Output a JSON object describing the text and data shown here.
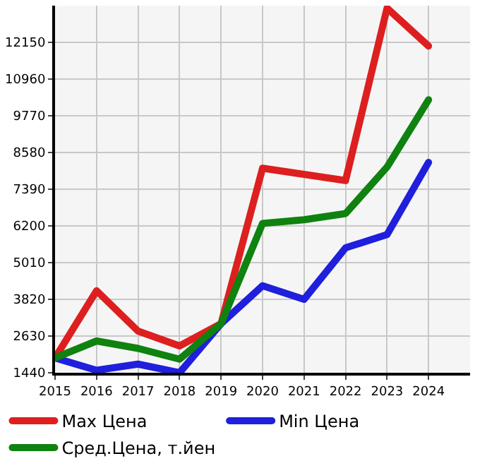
{
  "chart_data": {
    "type": "line",
    "x": [
      2015,
      2016,
      2017,
      2018,
      2019,
      2020,
      2021,
      2022,
      2023,
      2024
    ],
    "series": [
      {
        "name": "Max Цена",
        "color": "#dd1f1f",
        "values": [
          1920,
          4100,
          2790,
          2310,
          3030,
          8070,
          7870,
          7670,
          13260,
          12030
        ]
      },
      {
        "name": "Min Цена",
        "color": "#1f1fdd",
        "values": [
          1920,
          1520,
          1720,
          1440,
          3030,
          4260,
          3820,
          5490,
          5920,
          8260
        ]
      },
      {
        "name": "Сред.Цена, т.йен",
        "color": "#0f820f",
        "values": [
          1920,
          2470,
          2230,
          1880,
          3030,
          6280,
          6400,
          6600,
          8110,
          10290
        ]
      }
    ],
    "xlim": [
      2015,
      2025
    ],
    "xticks": [
      2015,
      2016,
      2017,
      2018,
      2019,
      2020,
      2021,
      2022,
      2023,
      2024
    ],
    "ylim": [
      1440,
      13340
    ],
    "yticks": [
      1440,
      2630,
      3820,
      5010,
      6200,
      7390,
      8580,
      9770,
      10960,
      12150
    ],
    "grid": true,
    "legend": "bottom",
    "marker": "none",
    "line_style": "solid"
  }
}
